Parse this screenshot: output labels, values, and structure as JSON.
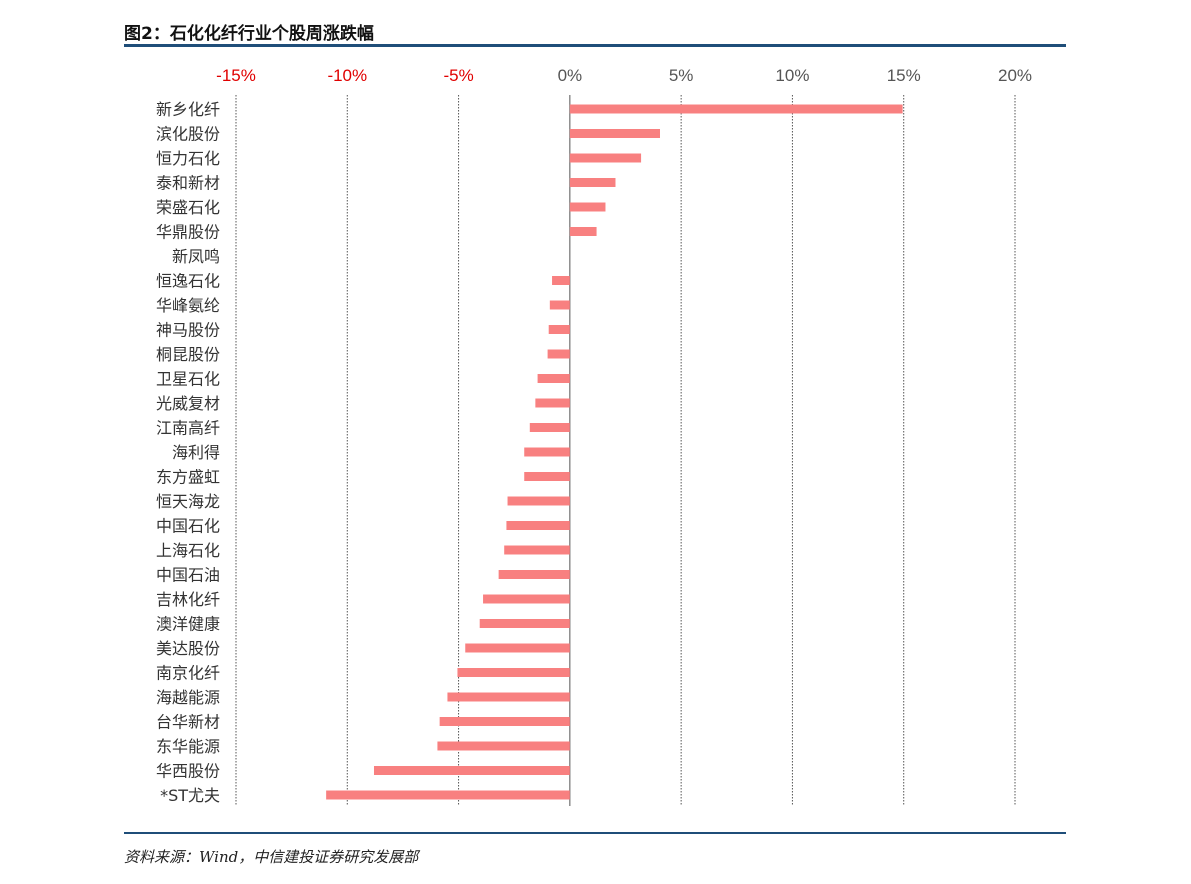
{
  "figure": {
    "title": "图2：石化化纤行业个股周涨跌幅",
    "source": "资料来源：Wind，中信建投证券研究发展部"
  },
  "colors": {
    "bar": "#f88080",
    "negative_tick": "#e00000",
    "positive_tick": "#555555",
    "gridline": "#555555",
    "rule": "#1f4e79"
  },
  "chart_data": {
    "type": "bar",
    "orientation": "horizontal",
    "categories": [
      "新乡化纤",
      "滨化股份",
      "恒力石化",
      "泰和新材",
      "荣盛石化",
      "华鼎股份",
      "新凤鸣",
      "恒逸石化",
      "华峰氨纶",
      "神马股份",
      "桐昆股份",
      "卫星石化",
      "光威复材",
      "江南高纤",
      "海利得",
      "东方盛虹",
      "恒天海龙",
      "中国石化",
      "上海石化",
      "中国石油",
      "吉林化纤",
      "澳洋健康",
      "美达股份",
      "南京化纤",
      "海越能源",
      "台华新材",
      "东华能源",
      "华西股份",
      "*ST尤夫"
    ],
    "values": [
      14.95,
      4.05,
      3.2,
      2.05,
      1.6,
      1.2,
      0.0,
      -0.8,
      -0.9,
      -0.95,
      -1.0,
      -1.45,
      -1.55,
      -1.8,
      -2.05,
      -2.05,
      -2.8,
      -2.85,
      -2.95,
      -3.2,
      -3.9,
      -4.05,
      -4.7,
      -5.05,
      -5.5,
      -5.85,
      -5.95,
      -8.8,
      -10.95
    ],
    "xlim": [
      -15,
      20
    ],
    "xticks": [
      -15,
      -10,
      -5,
      0,
      5,
      10,
      15,
      20
    ],
    "xtick_labels": [
      "-15%",
      "-10%",
      "-5%",
      "0%",
      "5%",
      "10%",
      "15%",
      "20%"
    ],
    "axis_position": "top",
    "grid": true,
    "legend": "none"
  }
}
